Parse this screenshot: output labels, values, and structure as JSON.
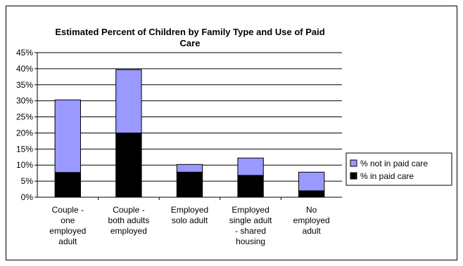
{
  "chart_data": {
    "type": "bar",
    "stacked": true,
    "title_lines": [
      "Estimated Percent of Children by Family Type and Use of Paid",
      "Care"
    ],
    "xlabel": "",
    "ylabel": "",
    "ylim": [
      0,
      45
    ],
    "y_tick_labels": [
      "0%",
      "5%",
      "10%",
      "15%",
      "20%",
      "25%",
      "30%",
      "35%",
      "40%",
      "45%"
    ],
    "grid": true,
    "legend_position": "right",
    "categories": [
      [
        "Couple -",
        "one",
        "employed",
        "adult"
      ],
      [
        "Couple -",
        "both adults",
        "employed"
      ],
      [
        "Employed",
        "solo adult"
      ],
      [
        "Employed",
        "single adult",
        "- shared",
        "housing"
      ],
      [
        "No",
        "employed",
        "adult"
      ]
    ],
    "series": [
      {
        "name": "% in paid care",
        "color": "#000000",
        "values": [
          7.7,
          20.0,
          7.8,
          6.8,
          2.0
        ]
      },
      {
        "name": "% not in paid care",
        "color": "#9999FF",
        "values": [
          22.6,
          19.7,
          2.4,
          5.4,
          5.8
        ]
      }
    ],
    "legend_order": [
      1,
      0
    ]
  }
}
